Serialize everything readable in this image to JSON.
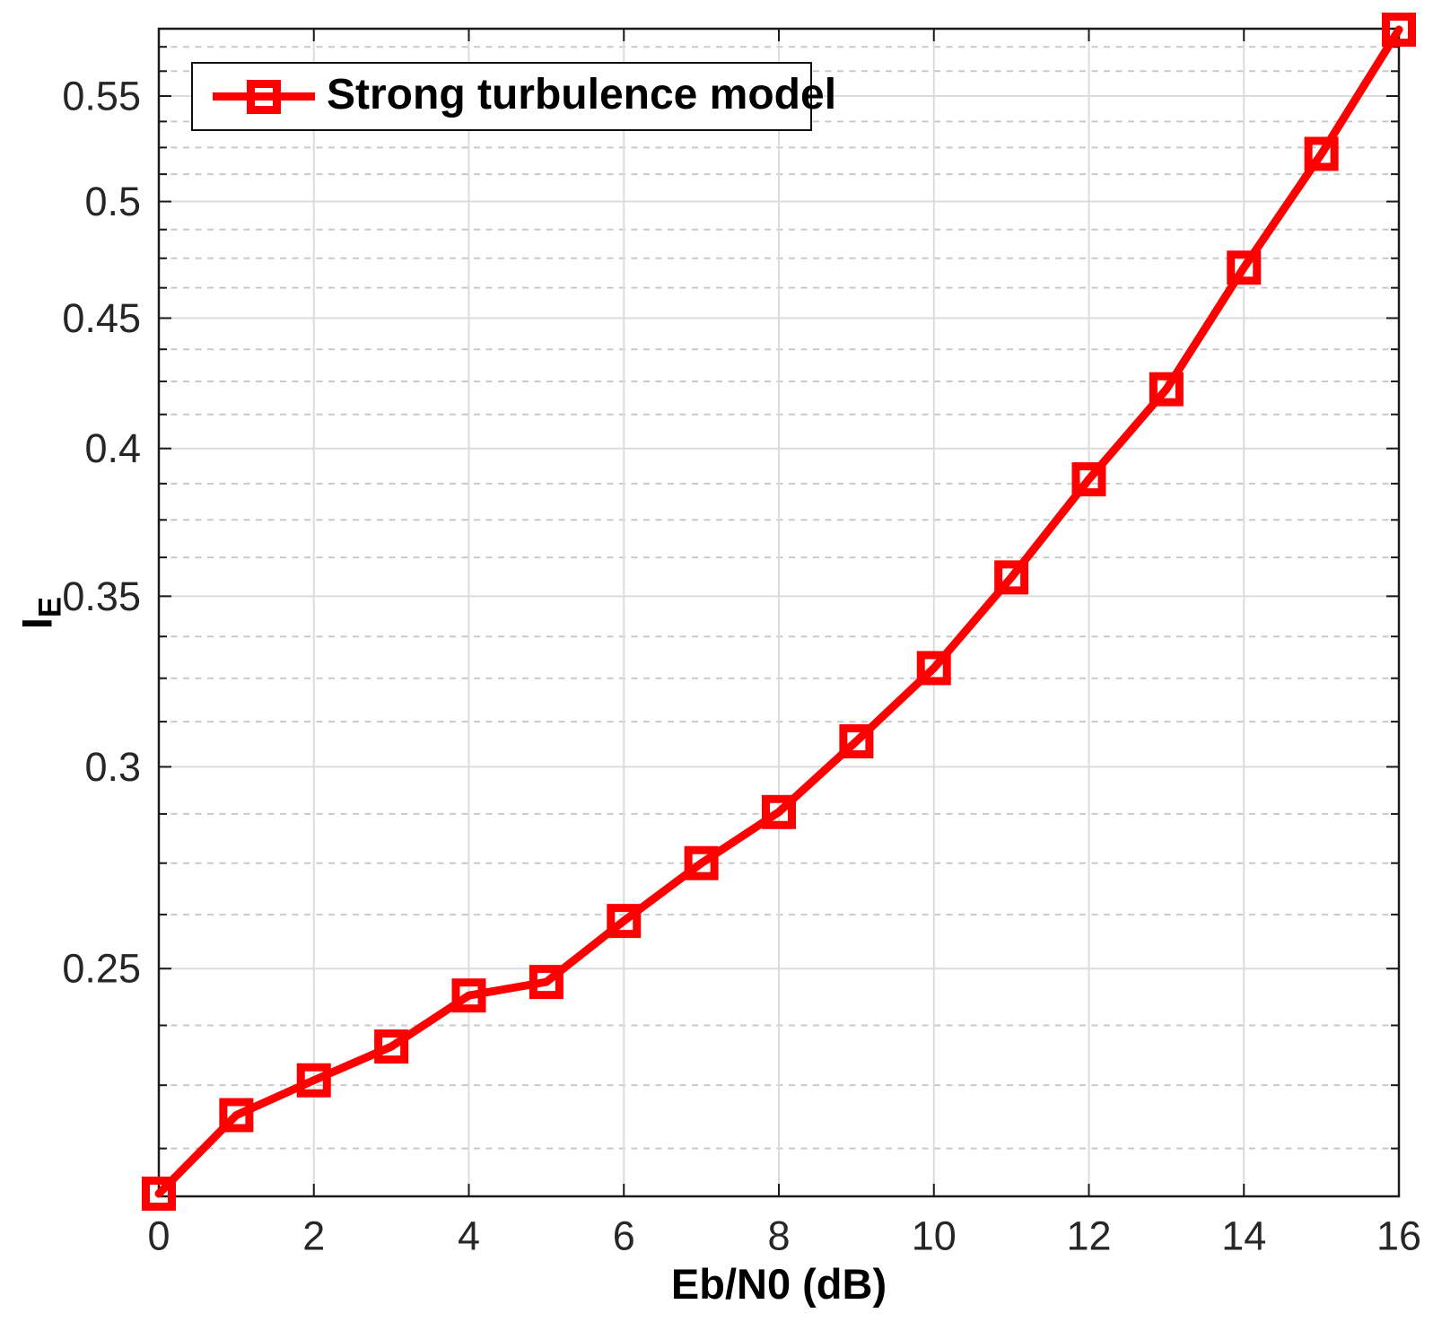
{
  "chart_data": {
    "type": "line",
    "title": "",
    "xlabel": "Eb/N0 (dB)",
    "ylabel": {
      "main": "I",
      "sub": "E"
    },
    "x": [
      0,
      1,
      2,
      3,
      4,
      5,
      6,
      7,
      8,
      9,
      10,
      11,
      12,
      13,
      14,
      15,
      16
    ],
    "series": [
      {
        "name": "Strong turbulence model",
        "color": "#ff0000",
        "marker": "square",
        "values": [
          0.204,
          0.219,
          0.226,
          0.233,
          0.244,
          0.247,
          0.261,
          0.275,
          0.288,
          0.307,
          0.328,
          0.356,
          0.389,
          0.422,
          0.471,
          0.522,
          0.584
        ]
      }
    ],
    "xlim": [
      0,
      16
    ],
    "ylim": [
      0.2035,
      0.5845
    ],
    "y_scale": "log",
    "x_tick_values": [
      0,
      2,
      4,
      6,
      8,
      10,
      12,
      14,
      16
    ],
    "x_tick_labels": [
      "0",
      "2",
      "4",
      "6",
      "8",
      "10",
      "12",
      "14",
      "16"
    ],
    "y_tick_values": [
      0.25,
      0.3,
      0.35,
      0.4,
      0.45,
      0.5,
      0.55
    ],
    "y_tick_labels": [
      "0.25",
      "0.3",
      "0.35",
      "0.4",
      "0.45",
      "0.5",
      "0.55"
    ],
    "y_minor_step": 0.0125,
    "grid": {
      "major": true,
      "minor_dashed": true
    },
    "legend": {
      "position": "northwest",
      "label": "Strong turbulence model"
    },
    "colors": {
      "series_red": "#ff0000",
      "major_grid": "#dcdcdc",
      "minor_grid": "#c9c9c9",
      "axis": "#1a1a1a",
      "tick_text": "#262626"
    }
  }
}
